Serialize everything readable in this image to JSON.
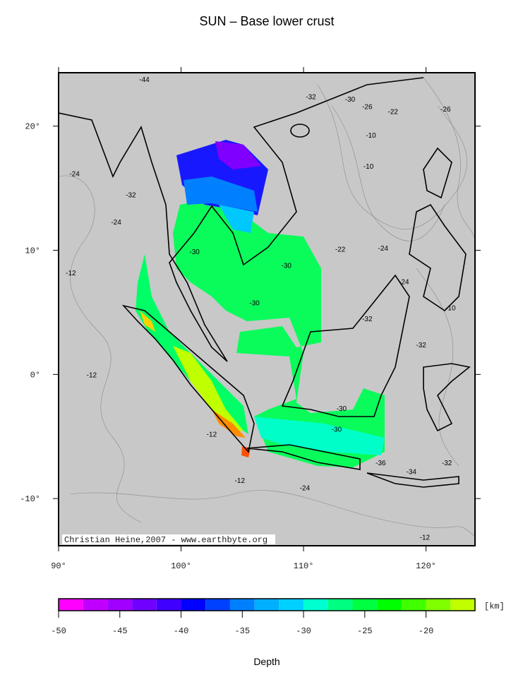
{
  "chart_data": {
    "type": "map",
    "title": "SUN – Base lower crust",
    "credit": "Christian Heine,2007 - www.earthbyte.org",
    "xlim": [
      90,
      124
    ],
    "ylim": [
      -13.8,
      24.3
    ],
    "xticks": [
      {
        "value": 90,
        "label": "90°"
      },
      {
        "value": 100,
        "label": "100°"
      },
      {
        "value": 110,
        "label": "110°"
      },
      {
        "value": 120,
        "label": "120°"
      }
    ],
    "yticks": [
      {
        "value": 20,
        "label": "20°"
      },
      {
        "value": 10,
        "label": "10°"
      },
      {
        "value": 0,
        "label": "0°"
      },
      {
        "value": -10,
        "label": "-10°"
      }
    ],
    "contour_labels": [
      {
        "value": -44,
        "lon": 97,
        "lat": 23.8
      },
      {
        "value": -32,
        "lon": 110.6,
        "lat": 22.4
      },
      {
        "value": -30,
        "lon": 113.8,
        "lat": 22.2
      },
      {
        "value": -26,
        "lon": 115.2,
        "lat": 21.6
      },
      {
        "value": -22,
        "lon": 117.3,
        "lat": 21.2
      },
      {
        "value": -26,
        "lon": 121.6,
        "lat": 21.4
      },
      {
        "value": -10,
        "lon": 115.5,
        "lat": 19.3
      },
      {
        "value": -10,
        "lon": 115.3,
        "lat": 16.8
      },
      {
        "value": -24,
        "lon": 91.3,
        "lat": 16.2
      },
      {
        "value": -32,
        "lon": 95.9,
        "lat": 14.5
      },
      {
        "value": -24,
        "lon": 94.7,
        "lat": 12.3
      },
      {
        "value": -22,
        "lon": 113,
        "lat": 10.1
      },
      {
        "value": -24,
        "lon": 116.5,
        "lat": 10.2
      },
      {
        "value": -24,
        "lon": 118.2,
        "lat": 7.5
      },
      {
        "value": -30,
        "lon": 101.1,
        "lat": 9.9
      },
      {
        "value": -30,
        "lon": 108.6,
        "lat": 8.8
      },
      {
        "value": -30,
        "lon": 106,
        "lat": 5.8
      },
      {
        "value": -12,
        "lon": 91,
        "lat": 8.2
      },
      {
        "value": -12,
        "lon": 92.7,
        "lat": 0
      },
      {
        "value": -32,
        "lon": 115.2,
        "lat": 4.5
      },
      {
        "value": -32,
        "lon": 119.6,
        "lat": 2.4
      },
      {
        "value": -30,
        "lon": 113.1,
        "lat": -2.7
      },
      {
        "value": -30,
        "lon": 112.7,
        "lat": -4.4
      },
      {
        "value": -36,
        "lon": 116.3,
        "lat": -7.1
      },
      {
        "value": -34,
        "lon": 118.8,
        "lat": -7.8
      },
      {
        "value": -32,
        "lon": 121.7,
        "lat": -7.1
      },
      {
        "value": -12,
        "lon": 102.5,
        "lat": -4.8
      },
      {
        "value": -12,
        "lon": 104.8,
        "lat": -8.5
      },
      {
        "value": -12,
        "lon": 119.9,
        "lat": -13.1
      },
      {
        "value": -10,
        "lon": 122,
        "lat": 5.4
      },
      {
        "value": -24,
        "lon": 110.1,
        "lat": -9.1
      }
    ],
    "colorbar": {
      "label": "Depth",
      "unit": "[km]",
      "bounds": [
        -50,
        -48,
        -46,
        -44,
        -42,
        -40,
        -38,
        -36,
        -34,
        -32,
        -30,
        -28,
        -26,
        -24,
        -22,
        -20,
        -18,
        -16
      ],
      "colors": [
        "#ff00ff",
        "#c000ff",
        "#a000ff",
        "#7000ff",
        "#4000ff",
        "#0000ff",
        "#0040ff",
        "#0080ff",
        "#00b0ff",
        "#00d0ff",
        "#00ffd0",
        "#00ff80",
        "#00ff40",
        "#00ff00",
        "#40ff00",
        "#80ff00",
        "#c0ff00"
      ],
      "ticks": [
        -50,
        -45,
        -40,
        -35,
        -30,
        -25,
        -20
      ]
    }
  }
}
